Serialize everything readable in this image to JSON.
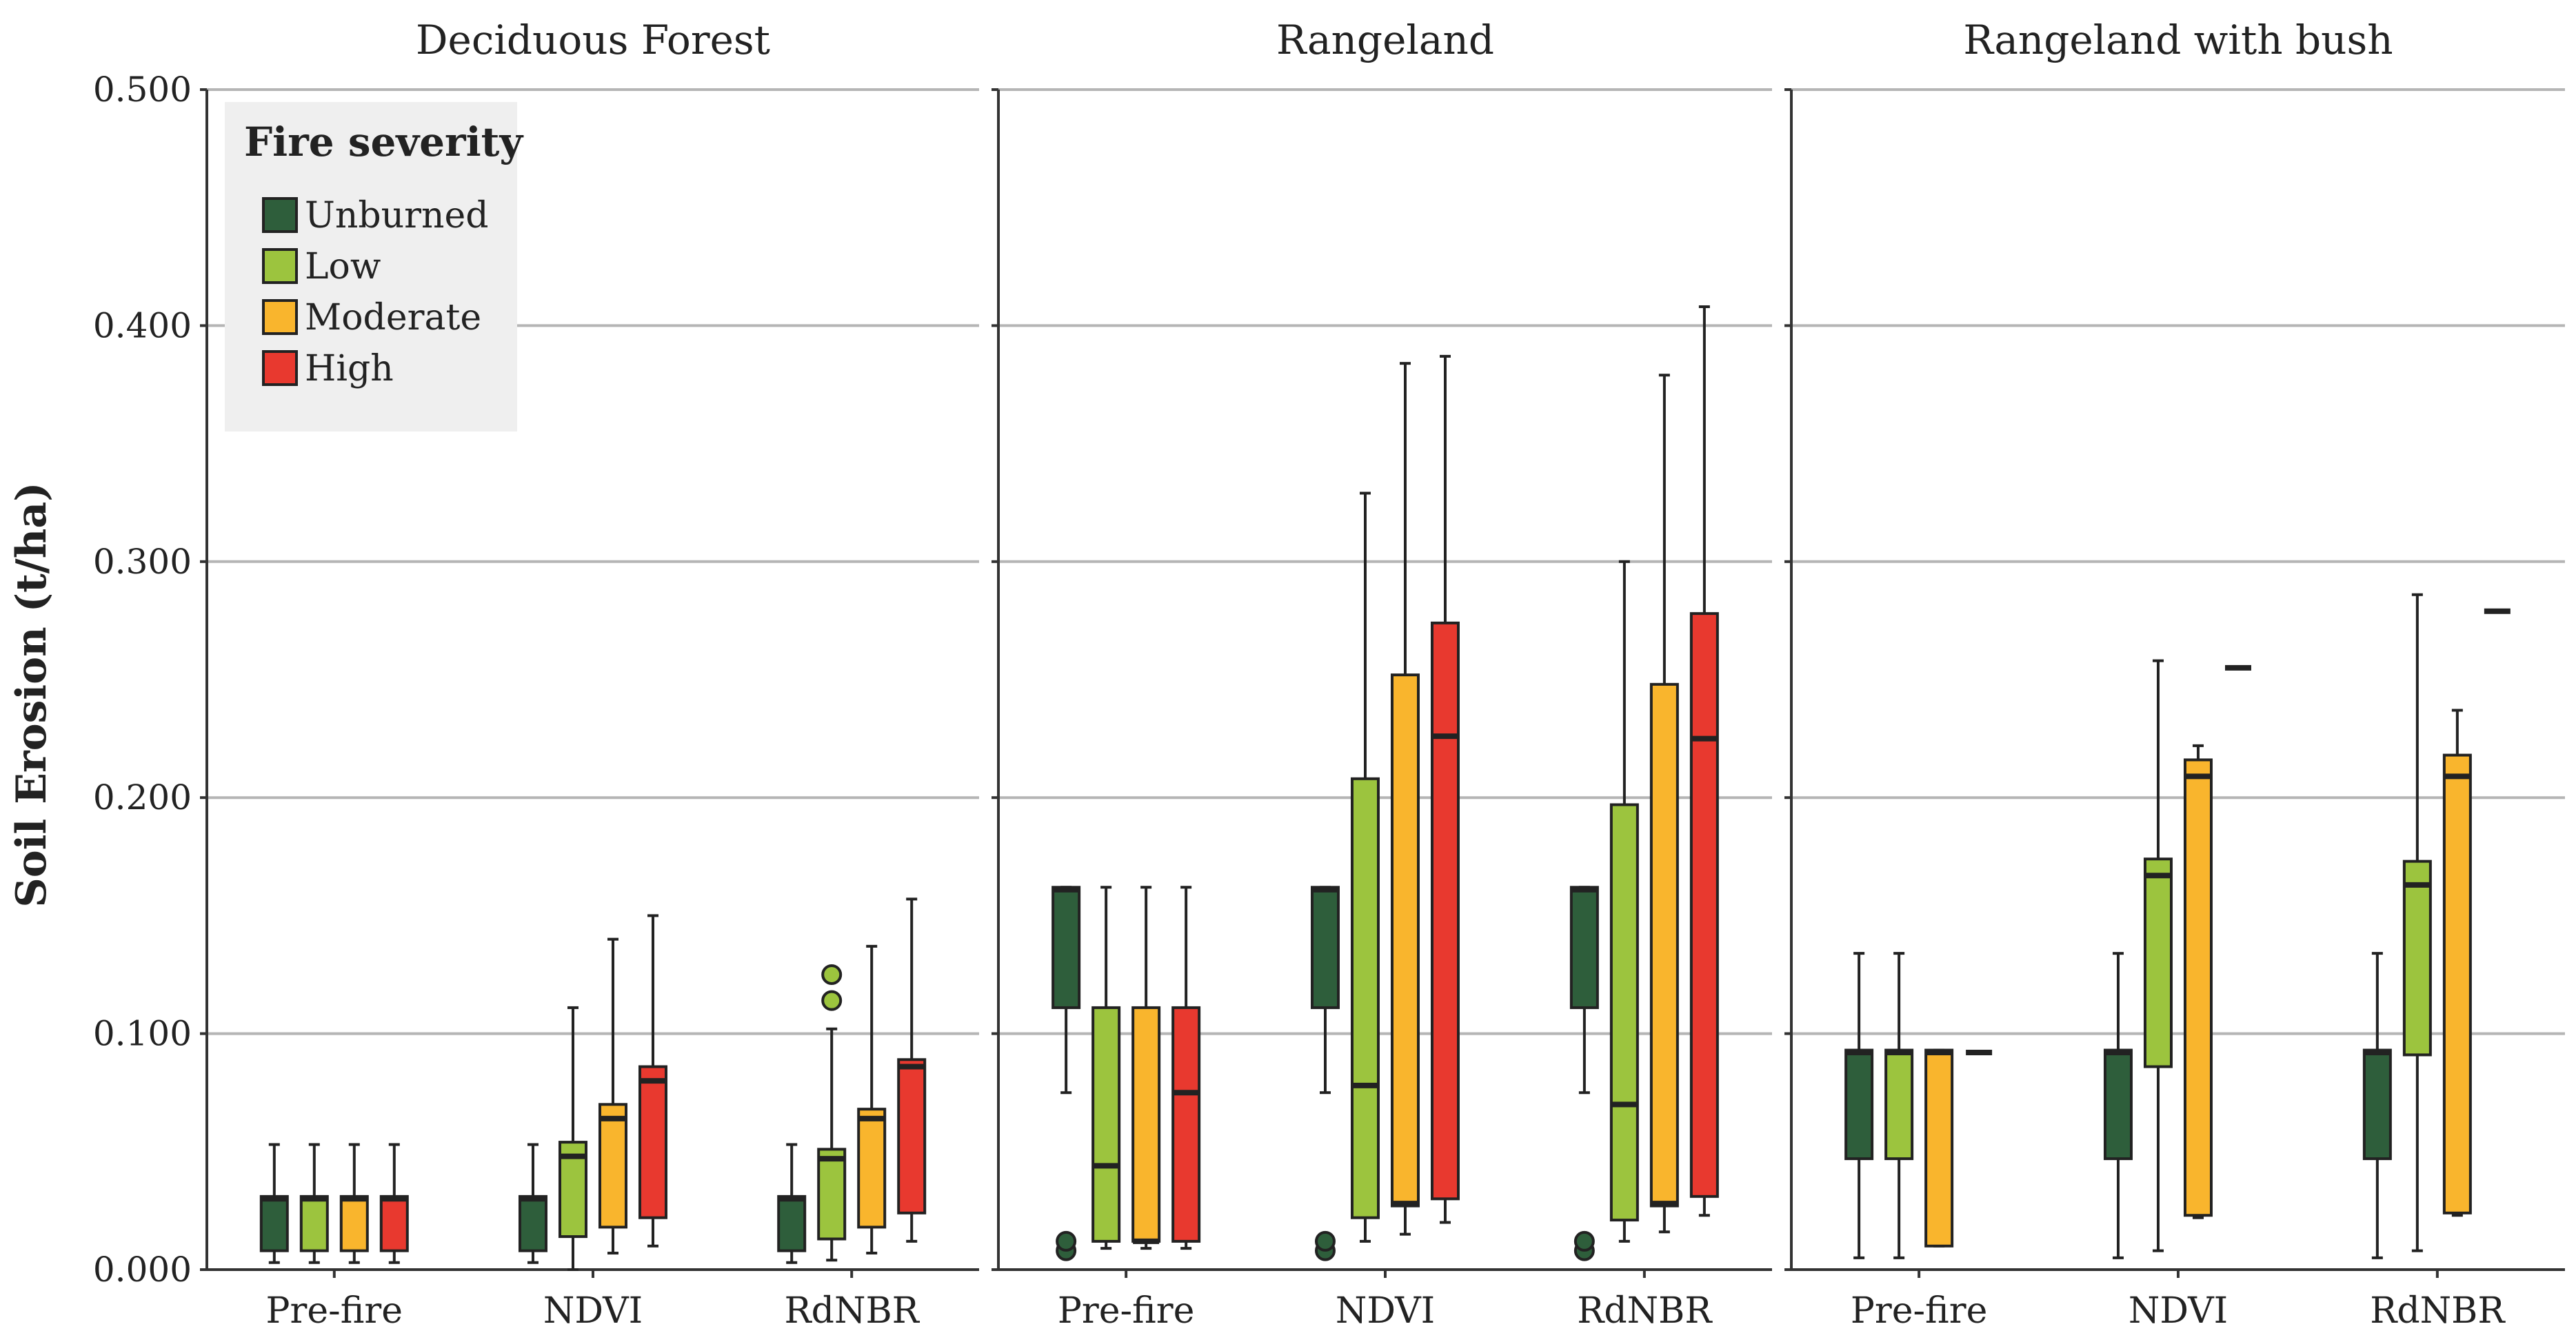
{
  "chart_data": {
    "type": "boxplot",
    "ylabel": "Soil Erosion (t/ha)",
    "ylim": [
      0,
      0.5
    ],
    "yticks": [
      0,
      0.1,
      0.2,
      0.3,
      0.4,
      0.5
    ],
    "ytick_labels": [
      "0.000",
      "0.100",
      "0.200",
      "0.300",
      "0.400",
      "0.500"
    ],
    "grid": true,
    "categories": [
      "Pre-fire",
      "NDVI",
      "RdNBR"
    ],
    "legend": {
      "title": "Fire severity",
      "placement": "top-left",
      "items": [
        {
          "label": "Unburned",
          "color": "#2e5e3b"
        },
        {
          "label": "Low",
          "color": "#9cc43e"
        },
        {
          "label": "Moderate",
          "color": "#f9b52d"
        },
        {
          "label": "High",
          "color": "#e8392f"
        }
      ]
    },
    "series_names": [
      "Unburned",
      "Low",
      "Moderate",
      "High"
    ],
    "panels": [
      {
        "title": "Deciduous Forest",
        "groups": [
          [
            {
              "min": 0.003,
              "q1": 0.008,
              "median": 0.03,
              "q3": 0.031,
              "max": 0.053,
              "outliers": []
            },
            {
              "min": 0.003,
              "q1": 0.008,
              "median": 0.03,
              "q3": 0.031,
              "max": 0.053,
              "outliers": []
            },
            {
              "min": 0.003,
              "q1": 0.008,
              "median": 0.03,
              "q3": 0.031,
              "max": 0.053,
              "outliers": []
            },
            {
              "min": 0.003,
              "q1": 0.008,
              "median": 0.03,
              "q3": 0.031,
              "max": 0.053,
              "outliers": []
            }
          ],
          [
            {
              "min": 0.003,
              "q1": 0.008,
              "median": 0.03,
              "q3": 0.031,
              "max": 0.053,
              "outliers": []
            },
            {
              "min": 0.0,
              "q1": 0.014,
              "median": 0.048,
              "q3": 0.054,
              "max": 0.111,
              "outliers": []
            },
            {
              "min": 0.007,
              "q1": 0.018,
              "median": 0.064,
              "q3": 0.07,
              "max": 0.14,
              "outliers": []
            },
            {
              "min": 0.01,
              "q1": 0.022,
              "median": 0.08,
              "q3": 0.086,
              "max": 0.15,
              "outliers": []
            }
          ],
          [
            {
              "min": 0.003,
              "q1": 0.008,
              "median": 0.03,
              "q3": 0.031,
              "max": 0.053,
              "outliers": []
            },
            {
              "min": 0.004,
              "q1": 0.013,
              "median": 0.047,
              "q3": 0.051,
              "max": 0.102,
              "outliers": [
                0.114,
                0.125
              ]
            },
            {
              "min": 0.007,
              "q1": 0.018,
              "median": 0.064,
              "q3": 0.068,
              "max": 0.137,
              "outliers": []
            },
            {
              "min": 0.012,
              "q1": 0.024,
              "median": 0.086,
              "q3": 0.089,
              "max": 0.157,
              "outliers": []
            }
          ]
        ]
      },
      {
        "title": "Rangeland",
        "groups": [
          [
            {
              "min": 0.075,
              "q1": 0.111,
              "median": 0.161,
              "q3": 0.162,
              "max": 0.162,
              "outliers": [
                0.008,
                0.012
              ]
            },
            {
              "min": 0.009,
              "q1": 0.012,
              "median": 0.044,
              "q3": 0.111,
              "max": 0.162,
              "outliers": []
            },
            {
              "min": 0.009,
              "q1": 0.012,
              "median": 0.012,
              "q3": 0.111,
              "max": 0.162,
              "outliers": []
            },
            {
              "min": 0.009,
              "q1": 0.012,
              "median": 0.075,
              "q3": 0.111,
              "max": 0.162,
              "outliers": []
            }
          ],
          [
            {
              "min": 0.075,
              "q1": 0.111,
              "median": 0.161,
              "q3": 0.162,
              "max": 0.162,
              "outliers": [
                0.008,
                0.012
              ]
            },
            {
              "min": 0.012,
              "q1": 0.022,
              "median": 0.078,
              "q3": 0.208,
              "max": 0.329,
              "outliers": []
            },
            {
              "min": 0.015,
              "q1": 0.027,
              "median": 0.028,
              "q3": 0.252,
              "max": 0.384,
              "outliers": []
            },
            {
              "min": 0.02,
              "q1": 0.03,
              "median": 0.226,
              "q3": 0.274,
              "max": 0.387,
              "outliers": []
            }
          ],
          [
            {
              "min": 0.075,
              "q1": 0.111,
              "median": 0.161,
              "q3": 0.162,
              "max": 0.162,
              "outliers": [
                0.008,
                0.012
              ]
            },
            {
              "min": 0.012,
              "q1": 0.021,
              "median": 0.07,
              "q3": 0.197,
              "max": 0.3,
              "outliers": []
            },
            {
              "min": 0.016,
              "q1": 0.027,
              "median": 0.028,
              "q3": 0.248,
              "max": 0.379,
              "outliers": []
            },
            {
              "min": 0.023,
              "q1": 0.031,
              "median": 0.225,
              "q3": 0.278,
              "max": 0.408,
              "outliers": []
            }
          ]
        ]
      },
      {
        "title": "Rangeland with bush",
        "groups": [
          [
            {
              "min": 0.005,
              "q1": 0.047,
              "median": 0.092,
              "q3": 0.093,
              "max": 0.134,
              "outliers": []
            },
            {
              "min": 0.005,
              "q1": 0.047,
              "median": 0.092,
              "q3": 0.093,
              "max": 0.134,
              "outliers": []
            },
            {
              "min": 0.01,
              "q1": 0.01,
              "median": 0.092,
              "q3": 0.093,
              "max": 0.093,
              "outliers": []
            },
            {
              "min": 0.092,
              "q1": 0.092,
              "median": 0.092,
              "q3": 0.092,
              "max": 0.092,
              "outliers": []
            }
          ],
          [
            {
              "min": 0.005,
              "q1": 0.047,
              "median": 0.092,
              "q3": 0.093,
              "max": 0.134,
              "outliers": []
            },
            {
              "min": 0.008,
              "q1": 0.086,
              "median": 0.167,
              "q3": 0.174,
              "max": 0.258,
              "outliers": []
            },
            {
              "min": 0.022,
              "q1": 0.023,
              "median": 0.209,
              "q3": 0.216,
              "max": 0.222,
              "outliers": []
            },
            {
              "min": 0.255,
              "q1": 0.255,
              "median": 0.255,
              "q3": 0.255,
              "max": 0.255,
              "outliers": []
            }
          ],
          [
            {
              "min": 0.005,
              "q1": 0.047,
              "median": 0.092,
              "q3": 0.093,
              "max": 0.134,
              "outliers": []
            },
            {
              "min": 0.008,
              "q1": 0.091,
              "median": 0.163,
              "q3": 0.173,
              "max": 0.286,
              "outliers": []
            },
            {
              "min": 0.023,
              "q1": 0.024,
              "median": 0.209,
              "q3": 0.218,
              "max": 0.237,
              "outliers": []
            },
            {
              "min": 0.279,
              "q1": 0.279,
              "median": 0.279,
              "q3": 0.279,
              "max": 0.279,
              "outliers": []
            }
          ]
        ]
      }
    ]
  }
}
